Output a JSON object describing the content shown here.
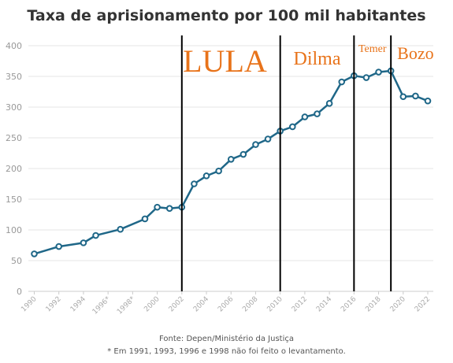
{
  "chart_data": {
    "type": "line",
    "title": "Taxa de aprisionamento por 100 mil habitantes",
    "xlabel": "",
    "ylabel": "",
    "ylim": [
      0,
      400
    ],
    "xlim": [
      1990,
      2022
    ],
    "yticks": [
      0,
      50,
      100,
      150,
      200,
      250,
      300,
      350,
      400
    ],
    "xticks": [
      "1990",
      "1992",
      "1994",
      "1996*",
      "1998*",
      "2000",
      "2002",
      "2004",
      "2006",
      "2008",
      "2010",
      "2012",
      "2014",
      "2016",
      "2018",
      "2020",
      "2022"
    ],
    "grid": true,
    "line_color": "#1f6788",
    "series": [
      {
        "x": [
          1990,
          1992,
          1994,
          1995,
          1997,
          1999,
          2000,
          2001,
          2002,
          2003,
          2004,
          2005,
          2006,
          2007,
          2008,
          2009,
          2010,
          2011,
          2012,
          2013,
          2014,
          2015,
          2016,
          2017,
          2018,
          2019,
          2020,
          2021,
          2022
        ],
        "values": [
          61,
          73,
          79,
          91,
          101,
          118,
          137,
          135,
          137,
          175,
          188,
          196,
          215,
          223,
          239,
          248,
          261,
          268,
          284,
          289,
          306,
          341,
          351,
          348,
          357,
          359,
          317,
          318,
          310
        ]
      }
    ],
    "vertical_markers": [
      2002,
      2010,
      2016,
      2019
    ],
    "annotations": [
      {
        "text": "LULA",
        "x": 2005.5,
        "color": "#e8731a"
      },
      {
        "text": "Dilma",
        "x": 2013,
        "color": "#e8731a"
      },
      {
        "text": "Temer",
        "x": 2017.5,
        "color": "#e8731a"
      },
      {
        "text": "Bozo",
        "x": 2021,
        "color": "#e8731a"
      }
    ]
  },
  "source": "Fonte: Depen/Ministério da Justiça",
  "footnote": "* Em 1991, 1993, 1996 e 1998 não foi feito o levantamento."
}
